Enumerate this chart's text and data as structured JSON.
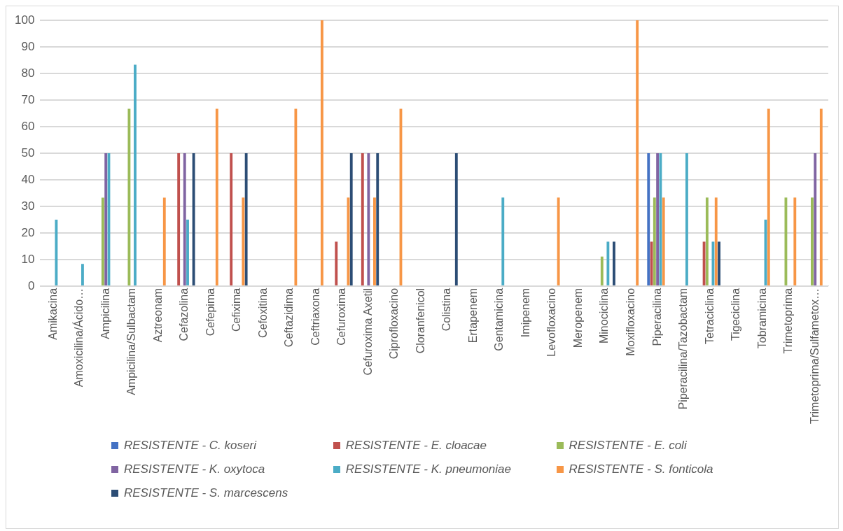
{
  "chart_data": {
    "type": "bar",
    "categories": [
      "Amikacina",
      "Amoxicilina/Ácido…",
      "Ampicilina",
      "Ampicilina/Sulbactam",
      "Aztreonam",
      "Cefazolina",
      "Cefepima",
      "Cefixima",
      "Cefoxitina",
      "Ceftazidima",
      "Ceftriaxona",
      "Cefuroxima",
      "Cefuroxima Axetil",
      "Ciprofloxacino",
      "Cloranfenicol",
      "Colistina",
      "Ertapenem",
      "Gentamicina",
      "Imipenem",
      "Levofloxacino",
      "Meropenem",
      "Minociclina",
      "Moxifloxacino",
      "Piperacilina",
      "Piperacilina/Tazobactam",
      "Tetraciclina",
      "Tigeciclina",
      "Tobramicina",
      "Trimetoprima",
      "Trimetoprima/Sulfametox…"
    ],
    "series": [
      {
        "name": "RESISTENTE - C. koseri",
        "color": "#4472c4",
        "values": [
          null,
          null,
          null,
          null,
          null,
          null,
          null,
          null,
          null,
          null,
          null,
          null,
          null,
          null,
          null,
          null,
          null,
          null,
          null,
          null,
          null,
          null,
          null,
          50,
          null,
          null,
          null,
          null,
          null,
          null
        ]
      },
      {
        "name": "RESISTENTE - E. cloacae",
        "color": "#c0504d",
        "values": [
          null,
          null,
          null,
          null,
          null,
          50,
          null,
          50,
          null,
          null,
          null,
          16.7,
          50,
          null,
          null,
          null,
          null,
          null,
          null,
          null,
          null,
          null,
          null,
          16.7,
          null,
          16.7,
          null,
          null,
          null,
          null
        ]
      },
      {
        "name": "RESISTENTE - E. coli",
        "color": "#9bbb59",
        "values": [
          null,
          null,
          33.3,
          66.7,
          null,
          null,
          null,
          null,
          null,
          null,
          null,
          null,
          null,
          null,
          null,
          null,
          null,
          null,
          null,
          null,
          null,
          11.1,
          null,
          33.3,
          null,
          33.3,
          null,
          null,
          33.3,
          33.3
        ]
      },
      {
        "name": "RESISTENTE - K. oxytoca",
        "color": "#8064a2",
        "values": [
          null,
          null,
          50,
          null,
          null,
          50,
          null,
          null,
          null,
          null,
          null,
          null,
          50,
          null,
          null,
          null,
          null,
          null,
          null,
          null,
          null,
          null,
          null,
          50,
          null,
          null,
          null,
          null,
          null,
          50
        ]
      },
      {
        "name": "RESISTENTE - K. pneumoniae",
        "color": "#4bacc6",
        "values": [
          25,
          8.3,
          50,
          83.3,
          null,
          25,
          null,
          null,
          null,
          null,
          null,
          null,
          null,
          null,
          null,
          null,
          null,
          33.3,
          null,
          null,
          null,
          16.7,
          null,
          50,
          50,
          16.7,
          null,
          25,
          null,
          null
        ]
      },
      {
        "name": "RESISTENTE - S. fonticola",
        "color": "#f79646",
        "values": [
          null,
          null,
          null,
          null,
          33.3,
          null,
          66.7,
          33.3,
          null,
          66.7,
          100,
          33.3,
          33.3,
          66.7,
          null,
          null,
          null,
          null,
          null,
          33.3,
          null,
          null,
          100,
          33.3,
          null,
          33.3,
          null,
          66.7,
          33.3,
          66.7
        ]
      },
      {
        "name": "RESISTENTE - S. marcescens",
        "color": "#2c4d75",
        "values": [
          null,
          null,
          null,
          null,
          null,
          50,
          null,
          50,
          null,
          null,
          null,
          50,
          50,
          null,
          null,
          50,
          null,
          null,
          null,
          null,
          null,
          16.7,
          null,
          null,
          null,
          16.7,
          null,
          null,
          null,
          null
        ]
      }
    ],
    "ylim": [
      0,
      100
    ],
    "yticks": [
      0,
      10,
      20,
      30,
      40,
      50,
      60,
      70,
      80,
      90,
      100
    ],
    "grid": "y",
    "legend": "bottom"
  }
}
